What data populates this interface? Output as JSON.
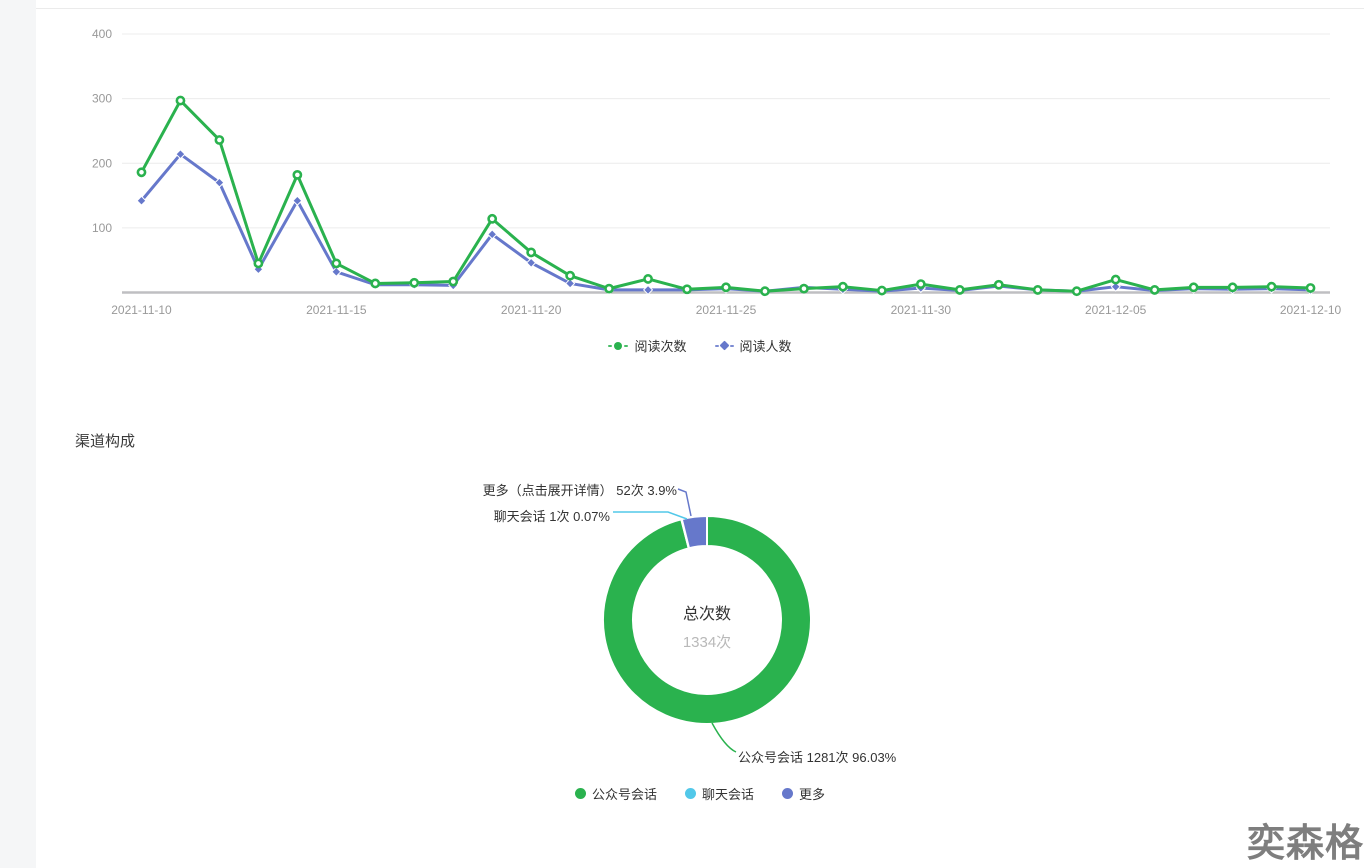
{
  "page": {
    "section2_title": "渠道构成",
    "watermark": "奕森格"
  },
  "colors": {
    "green": "#2ab24e",
    "purple": "#6678cb",
    "cyan": "#52c8e9",
    "axis_line": "#bfbfc2",
    "grid_line": "#ececec",
    "tick_text": "#999999"
  },
  "chart_data": [
    {
      "type": "line",
      "x": [
        "2021-11-10",
        "2021-11-11",
        "2021-11-12",
        "2021-11-13",
        "2021-11-14",
        "2021-11-15",
        "2021-11-16",
        "2021-11-17",
        "2021-11-18",
        "2021-11-19",
        "2021-11-20",
        "2021-11-21",
        "2021-11-22",
        "2021-11-23",
        "2021-11-24",
        "2021-11-25",
        "2021-11-26",
        "2021-11-27",
        "2021-11-28",
        "2021-11-29",
        "2021-11-30",
        "2021-12-01",
        "2021-12-02",
        "2021-12-03",
        "2021-12-04",
        "2021-12-05",
        "2021-12-06",
        "2021-12-07",
        "2021-12-08",
        "2021-12-09",
        "2021-12-10"
      ],
      "x_tick_labels": [
        "2021-11-10",
        "2021-11-15",
        "2021-11-20",
        "2021-11-25",
        "2021-11-30",
        "2021-12-05",
        "2021-12-10"
      ],
      "series": [
        {
          "name": "阅读人数",
          "color": "#6678cb",
          "symbol": "diamond",
          "values": [
            142,
            214,
            170,
            36,
            142,
            32,
            12,
            12,
            11,
            90,
            46,
            14,
            4,
            4,
            4,
            6,
            2,
            8,
            5,
            2,
            7,
            3,
            10,
            4,
            2,
            9,
            3,
            6,
            5,
            6,
            4
          ]
        },
        {
          "name": "阅读次数",
          "color": "#2ab24e",
          "symbol": "circle",
          "values": [
            186,
            297,
            236,
            45,
            182,
            45,
            14,
            15,
            17,
            114,
            62,
            26,
            6,
            21,
            5,
            8,
            2,
            6,
            9,
            3,
            13,
            4,
            12,
            4,
            2,
            20,
            4,
            8,
            8,
            9,
            7
          ]
        }
      ],
      "ylim": [
        0,
        400
      ],
      "yticks": [
        100,
        200,
        300,
        400
      ],
      "grid": true,
      "legend_position": "bottom",
      "legend_order": [
        "阅读次数",
        "阅读人数"
      ]
    },
    {
      "type": "pie",
      "title": "渠道构成",
      "center_label": {
        "title": "总次数",
        "value": "1334次"
      },
      "slices": [
        {
          "name": "公众号会话",
          "value": 1281,
          "percent": "96.03%",
          "color": "#2ab24e",
          "callout": "公众号会话 1281次 96.03%"
        },
        {
          "name": "聊天会话",
          "value": 1,
          "percent": "0.07%",
          "color": "#52c8e9",
          "callout": "聊天会话 1次 0.07%"
        },
        {
          "name": "更多",
          "value": 52,
          "percent": "3.9%",
          "color": "#6678cb",
          "callout": "更多（点击展开详情）  52次 3.9%"
        }
      ],
      "legend": [
        "公众号会话",
        "聊天会话",
        "更多"
      ],
      "legend_position": "bottom"
    }
  ]
}
